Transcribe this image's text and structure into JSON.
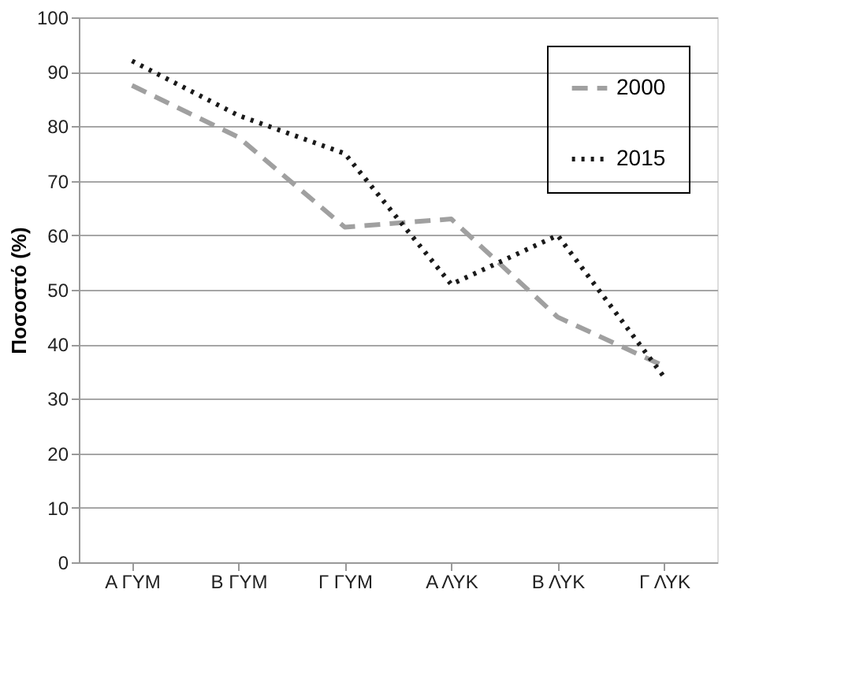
{
  "chart_data": {
    "type": "line",
    "ylabel": "Ποσοστό (%)",
    "categories": [
      "Α ΓΥΜ",
      "Β ΓΥΜ",
      "Γ ΓΥΜ",
      "Α ΛΥΚ",
      "Β ΛΥΚ",
      "Γ ΛΥΚ"
    ],
    "series": [
      {
        "name": "2000",
        "color": "#a0a0a0",
        "line_style": "dashed",
        "values": [
          87.5,
          78,
          61.5,
          63,
          45,
          36
        ]
      },
      {
        "name": "2015",
        "color": "#1a1a1a",
        "line_style": "dotted",
        "values": [
          92,
          82,
          75,
          51,
          60,
          34
        ]
      }
    ],
    "ylim": [
      0,
      100
    ],
    "yticks": [
      0,
      10,
      20,
      30,
      40,
      50,
      60,
      70,
      80,
      90,
      100
    ],
    "grid": "y",
    "legend": "top right",
    "marker": "none"
  }
}
